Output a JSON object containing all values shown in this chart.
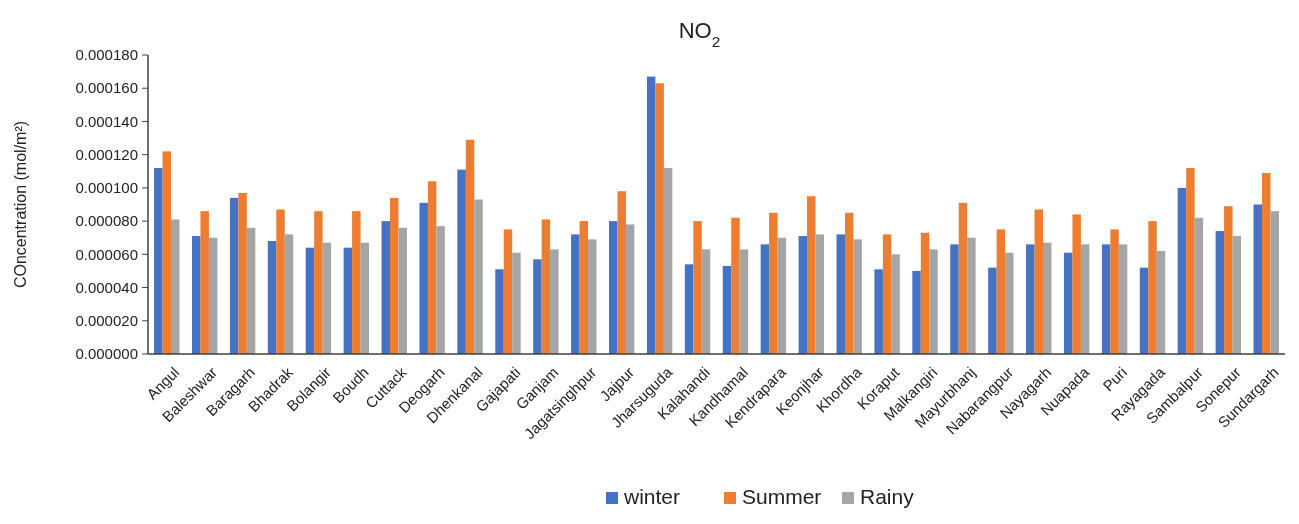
{
  "chart_data": {
    "type": "bar",
    "title": "NO$_{2}$",
    "ylabel": "COncentration (mol/m²)",
    "categories": [
      "Angul",
      "Baleshwar",
      "Baragarh",
      "Bhadrak",
      "Bolangir",
      "Boudh",
      "Cuttack",
      "Deogarh",
      "Dhenkanal",
      "Gajapati",
      "Ganjam",
      "Jagatsinghpur",
      "Jajpur",
      "Jharsuguda",
      "Kalahandi",
      "Kandhamal",
      "Kendrapara",
      "Keonjhar",
      "Khordha",
      "Koraput",
      "Malkangiri",
      "Mayurbhanj",
      "Nabarangpur",
      "Nayagarh",
      "Nuapada",
      "Puri",
      "Rayagada",
      "Sambalpur",
      "Sonepur",
      "Sundargarh"
    ],
    "series": [
      {
        "name": "winter",
        "color": "#4472c4",
        "values": [
          0.000112,
          7.1e-05,
          9.4e-05,
          6.8e-05,
          6.4e-05,
          6.4e-05,
          8e-05,
          9.1e-05,
          0.000111,
          5.1e-05,
          5.7e-05,
          7.2e-05,
          8e-05,
          0.000167,
          5.4e-05,
          5.3e-05,
          6.6e-05,
          7.1e-05,
          7.2e-05,
          5.1e-05,
          5e-05,
          6.6e-05,
          5.2e-05,
          6.6e-05,
          6.1e-05,
          6.6e-05,
          5.2e-05,
          0.0001,
          7.4e-05,
          9e-05
        ]
      },
      {
        "name": "Summer",
        "color": "#ed7d31",
        "values": [
          0.000122,
          8.6e-05,
          9.7e-05,
          8.7e-05,
          8.6e-05,
          8.6e-05,
          9.4e-05,
          0.000104,
          0.000129,
          7.5e-05,
          8.1e-05,
          8e-05,
          9.8e-05,
          0.000163,
          8e-05,
          8.2e-05,
          8.5e-05,
          9.5e-05,
          8.5e-05,
          7.2e-05,
          7.3e-05,
          9.1e-05,
          7.5e-05,
          8.7e-05,
          8.4e-05,
          7.5e-05,
          8e-05,
          0.000112,
          8.9e-05,
          0.000109
        ]
      },
      {
        "name": "Rainy",
        "color": "#a5a5a5",
        "values": [
          8.1e-05,
          7e-05,
          7.6e-05,
          7.2e-05,
          6.7e-05,
          6.7e-05,
          7.6e-05,
          7.7e-05,
          9.3e-05,
          6.1e-05,
          6.3e-05,
          6.9e-05,
          7.8e-05,
          0.000112,
          6.3e-05,
          6.3e-05,
          7e-05,
          7.2e-05,
          6.9e-05,
          6e-05,
          6.3e-05,
          7e-05,
          6.1e-05,
          6.7e-05,
          6.6e-05,
          6.6e-05,
          6.2e-05,
          8.2e-05,
          7.1e-05,
          8.6e-05
        ]
      }
    ],
    "ylim": [
      0,
      0.00018
    ],
    "yticks": [
      {
        "value": 0,
        "label": "0.000000"
      },
      {
        "value": 2e-05,
        "label": "0.000020"
      },
      {
        "value": 4e-05,
        "label": "0.000040"
      },
      {
        "value": 6e-05,
        "label": "0.000060"
      },
      {
        "value": 8e-05,
        "label": "0.000080"
      },
      {
        "value": 0.0001,
        "label": "0.000100"
      },
      {
        "value": 0.00012,
        "label": "0.000120"
      },
      {
        "value": 0.00014,
        "label": "0.000140"
      },
      {
        "value": 0.00016,
        "label": "0.000160"
      },
      {
        "value": 0.00018,
        "label": "0.000180"
      }
    ],
    "grid": false,
    "legend": "bottom"
  }
}
